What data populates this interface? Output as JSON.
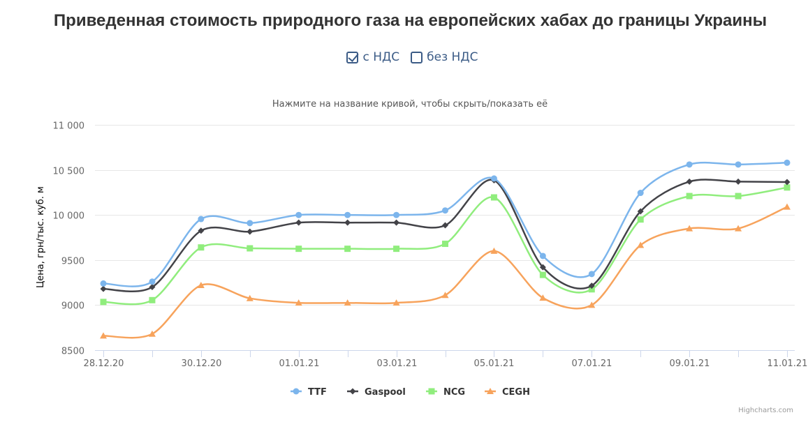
{
  "page": {
    "title": "Приведенная стоимость природного газа на европейских хабах до границы Украины",
    "credits": "Highcharts.com"
  },
  "vat": {
    "with_vat_label": "с НДС",
    "with_vat_checked": true,
    "without_vat_label": "без НДС",
    "without_vat_checked": false
  },
  "chart_data": {
    "type": "line",
    "subtitle": "Нажмите на название кривой, чтобы скрыть/показать её",
    "ylabel": "Цена, грн/тыс. куб. м",
    "xlabel": "",
    "ylim": [
      8500,
      11000
    ],
    "yticks": [
      8500,
      9000,
      9500,
      10000,
      10500,
      11000
    ],
    "ytick_labels": [
      "8500",
      "9000",
      "9500",
      "10 000",
      "10 500",
      "11 000"
    ],
    "x": [
      "28.12.20",
      "29.12.20",
      "30.12.20",
      "31.12.20",
      "01.01.21",
      "02.01.21",
      "03.01.21",
      "04.01.21",
      "05.01.21",
      "06.01.21",
      "07.01.21",
      "08.01.21",
      "09.01.21",
      "10.01.21",
      "11.01.21"
    ],
    "xtick_labels": [
      "28.12.20",
      "",
      "30.12.20",
      "",
      "01.01.21",
      "",
      "03.01.21",
      "",
      "05.01.21",
      "",
      "07.01.21",
      "",
      "09.01.21",
      "",
      "11.01.21"
    ],
    "grid": true,
    "legend_position": "bottom-center",
    "series": [
      {
        "name": "TTF",
        "color": "#7cb5ec",
        "marker": "circle",
        "values": [
          9240,
          9260,
          9955,
          9910,
          10000,
          10000,
          10000,
          10050,
          10405,
          9545,
          9345,
          10245,
          10560,
          10560,
          10580
        ]
      },
      {
        "name": "Gaspool",
        "color": "#434348",
        "marker": "diamond",
        "values": [
          9180,
          9200,
          9825,
          9815,
          9915,
          9915,
          9915,
          9885,
          10385,
          9420,
          9215,
          10040,
          10370,
          10370,
          10365
        ]
      },
      {
        "name": "NCG",
        "color": "#90ed7d",
        "marker": "square",
        "values": [
          9035,
          9055,
          9640,
          9630,
          9625,
          9625,
          9625,
          9680,
          10195,
          9335,
          9175,
          9950,
          10210,
          10210,
          10305
        ]
      },
      {
        "name": "CEGH",
        "color": "#f7a35c",
        "marker": "triangle",
        "values": [
          8660,
          8680,
          9220,
          9075,
          9025,
          9025,
          9025,
          9110,
          9600,
          9080,
          9000,
          9665,
          9850,
          9850,
          10090
        ]
      }
    ]
  }
}
